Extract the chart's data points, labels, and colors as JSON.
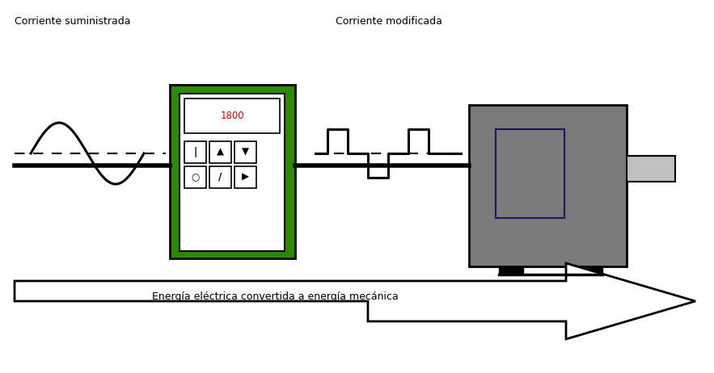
{
  "bg_color": "#ffffff",
  "title_left": "Corriente suministrada",
  "title_right": "Corriente modificada",
  "arrow_label": "Energía eléctrica convertida a energía mecánica",
  "display_text": "1800",
  "green_color": "#2d8a00",
  "gray_color": "#7a7a7a",
  "light_gray": "#c0c0c0",
  "white": "#ffffff",
  "black": "#000000",
  "red_text": "#cc0000"
}
